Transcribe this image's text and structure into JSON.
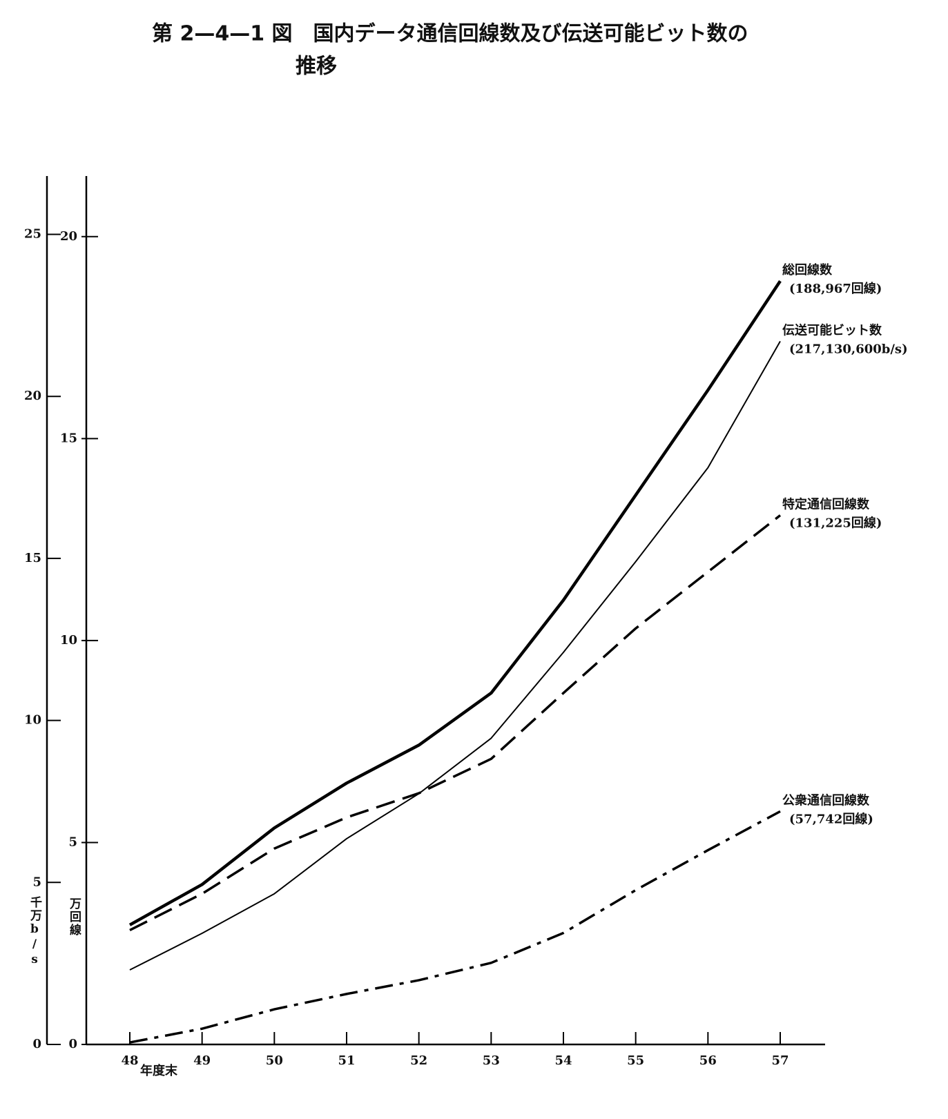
{
  "chart_data": {
    "type": "line",
    "title": "第 2—4—1 図　国内データ通信回線数及び伝送可能ビット数の",
    "title_line2": "推移",
    "x_label": "年度末",
    "y_label": "万回線",
    "y2_label": "千万b/s",
    "categories": [
      "48",
      "49",
      "50",
      "51",
      "52",
      "53",
      "54",
      "55",
      "56",
      "57"
    ],
    "ylim": [
      0,
      21.5
    ],
    "yticks": [
      0,
      5,
      10,
      15,
      20
    ],
    "y2lim": [
      0,
      26.8
    ],
    "y2ticks": [
      0,
      5,
      10,
      15,
      20,
      25
    ],
    "series": [
      {
        "name": "総回線数",
        "end_label": "(188,967回線)",
        "color": "#000000",
        "line_width": 4.5,
        "line_style": "solid",
        "values": [
          2.96,
          3.96,
          5.36,
          6.47,
          7.41,
          8.7,
          11.0,
          13.6,
          16.2,
          18.9
        ]
      },
      {
        "name": "伝送可能ビット数",
        "end_label": "(217,130,600b/s)",
        "color": "#000000",
        "line_width": 2,
        "line_style": "solid",
        "axis": "y2",
        "values": [
          2.3,
          3.43,
          4.65,
          6.35,
          7.74,
          9.45,
          12.1,
          14.9,
          17.8,
          21.7
        ]
      },
      {
        "name": "特定通信回線数",
        "end_label": "(131,225回線)",
        "color": "#000000",
        "line_width": 3.5,
        "line_style": "dashed",
        "values": [
          2.83,
          3.73,
          4.85,
          5.62,
          6.22,
          7.07,
          8.7,
          10.3,
          11.7,
          13.1
        ]
      },
      {
        "name": "公衆通信回線数",
        "end_label": "(57,742回線)",
        "color": "#000000",
        "line_width": 3.5,
        "line_style": "dashdot",
        "values": [
          0.05,
          0.39,
          0.87,
          1.25,
          1.59,
          2.02,
          2.76,
          3.82,
          4.81,
          5.77
        ]
      }
    ]
  }
}
